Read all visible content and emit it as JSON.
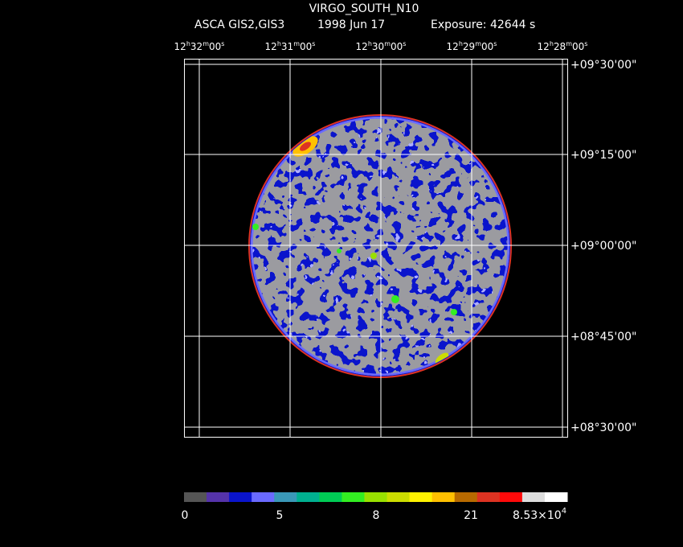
{
  "header": {
    "title": "VIRGO_SOUTH_N10",
    "instrument": "ASCA GIS2,GIS3",
    "date": "1998 Jun 17",
    "exposure": "Exposure: 42644 s"
  },
  "ra_labels": [
    [
      "12",
      "h",
      "32",
      "m",
      "00",
      "s"
    ],
    [
      "12",
      "h",
      "31",
      "m",
      "00",
      "s"
    ],
    [
      "12",
      "h",
      "30",
      "m",
      "00",
      "s"
    ],
    [
      "12",
      "h",
      "29",
      "m",
      "00",
      "s"
    ],
    [
      "12",
      "h",
      "28",
      "m",
      "00",
      "s"
    ]
  ],
  "dec_labels": [
    "+09°30'00\"",
    "+09°15'00\"",
    "+09°00'00\"",
    "+08°45'00\"",
    "+08°30'00\""
  ],
  "colorbar": {
    "colors": [
      "#555555",
      "#5533aa",
      "#0a14cc",
      "#6a6aff",
      "#3a98b8",
      "#00b090",
      "#00cc55",
      "#33ee22",
      "#99e000",
      "#ccdd00",
      "#fff200",
      "#ffc000",
      "#b86a00",
      "#dd3322",
      "#ff0a0a",
      "#dddddd",
      "#ffffff"
    ],
    "labels": [
      "0",
      "5",
      "8",
      "21"
    ],
    "max": {
      "mantissa": "8.53×10",
      "exponent": "4"
    }
  }
}
